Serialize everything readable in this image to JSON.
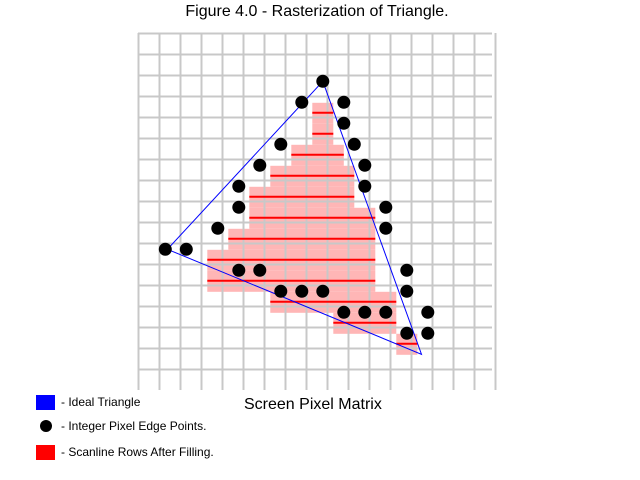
{
  "figure": {
    "title": "Figure 4.0 - Rasterization of Triangle.",
    "matrix_label": "Screen Pixel Matrix"
  },
  "grid": {
    "cols": 17,
    "rows": 16
  },
  "triangle": {
    "vertices": [
      [
        8.8,
        2.3
      ],
      [
        1.4,
        10.3
      ],
      [
        13.5,
        15.3
      ]
    ]
  },
  "edge_points": [
    [
      8.8,
      2.3
    ],
    [
      7.8,
      3.3
    ],
    [
      9.8,
      3.3
    ],
    [
      9.8,
      4.3
    ],
    [
      6.8,
      5.3
    ],
    [
      10.3,
      5.3
    ],
    [
      5.8,
      6.3
    ],
    [
      10.8,
      6.3
    ],
    [
      4.8,
      7.3
    ],
    [
      10.8,
      7.3
    ],
    [
      4.8,
      8.3
    ],
    [
      11.8,
      8.3
    ],
    [
      3.8,
      9.3
    ],
    [
      11.8,
      9.3
    ],
    [
      1.3,
      10.3
    ],
    [
      2.3,
      10.3
    ],
    [
      4.8,
      11.3
    ],
    [
      5.8,
      11.3
    ],
    [
      12.8,
      11.3
    ],
    [
      6.8,
      12.3
    ],
    [
      7.8,
      12.3
    ],
    [
      8.8,
      12.3
    ],
    [
      12.8,
      12.3
    ],
    [
      9.8,
      13.3
    ],
    [
      10.8,
      13.3
    ],
    [
      11.8,
      13.3
    ],
    [
      13.8,
      13.3
    ],
    [
      12.8,
      14.3
    ],
    [
      13.8,
      14.3
    ]
  ],
  "fill_rows": [
    [
      8.3,
      9.3,
      3.8
    ],
    [
      8.3,
      9.3,
      4.8
    ],
    [
      7.3,
      9.8,
      5.8
    ],
    [
      6.3,
      10.3,
      6.8
    ],
    [
      5.3,
      10.3,
      7.8
    ],
    [
      5.3,
      11.3,
      8.8
    ],
    [
      4.3,
      11.3,
      9.8
    ],
    [
      3.3,
      11.3,
      10.8
    ],
    [
      3.3,
      11.3,
      11.8
    ],
    [
      6.3,
      12.3,
      12.8
    ],
    [
      9.3,
      12.3,
      13.8
    ],
    [
      12.3,
      13.3,
      14.8
    ]
  ],
  "scanline_rows": [
    [
      8.3,
      9.3,
      3.8
    ],
    [
      8.3,
      9.3,
      4.8
    ],
    [
      7.3,
      9.8,
      5.8
    ],
    [
      6.3,
      10.3,
      6.8
    ],
    [
      5.3,
      10.3,
      7.8
    ],
    [
      5.3,
      11.3,
      8.8
    ],
    [
      4.3,
      11.3,
      9.8
    ],
    [
      3.3,
      11.3,
      10.8
    ],
    [
      3.3,
      11.3,
      11.8
    ],
    [
      6.3,
      12.3,
      12.8
    ],
    [
      9.3,
      12.3,
      13.8
    ],
    [
      12.3,
      13.3,
      14.8
    ]
  ],
  "colors": {
    "grid": "#c8c8c8",
    "triangle": "#0000ff",
    "edge_points": "#000000",
    "scanline": "#ff0000",
    "fill": "#ffb6b6"
  },
  "legend": [
    {
      "kind": "swatch",
      "color": "#0000ff",
      "label": "- Ideal Triangle"
    },
    {
      "kind": "dot",
      "color": "#000000",
      "label": "- Integer Pixel Edge Points."
    },
    {
      "kind": "swatch",
      "color": "#ff0000",
      "label": "- Scanline Rows After Filling."
    }
  ]
}
